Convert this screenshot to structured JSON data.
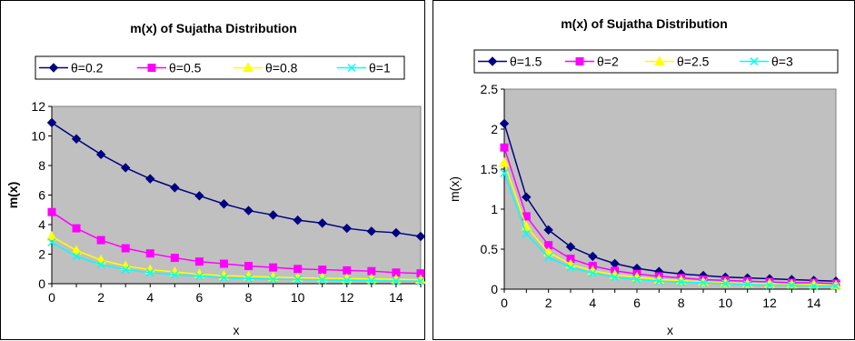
{
  "chart_data": [
    {
      "type": "line",
      "title": "m(x) of Sujatha Distribution",
      "xlabel": "x",
      "ylabel": "m(x)",
      "ylabel_bold": true,
      "xlim": [
        0,
        15
      ],
      "ylim": [
        0,
        12
      ],
      "xticks": [
        0,
        2,
        4,
        6,
        8,
        10,
        12,
        14
      ],
      "yticks": [
        0,
        2,
        4,
        6,
        8,
        10,
        12
      ],
      "ytick_labels": [
        "0",
        "2",
        "4",
        "6",
        "8",
        "10",
        "12"
      ],
      "grid": false,
      "legend_position": "top",
      "plot_background": "#c0c0c0",
      "x": [
        0,
        1,
        2,
        3,
        4,
        5,
        6,
        7,
        8,
        9,
        10,
        11,
        12,
        13,
        14,
        15
      ],
      "series": [
        {
          "name": "θ=0.2",
          "color": "#000080",
          "marker": "diamond",
          "values": [
            10.9,
            9.8,
            8.75,
            7.85,
            7.1,
            6.5,
            5.95,
            5.4,
            4.95,
            4.65,
            4.3,
            4.1,
            3.75,
            3.55,
            3.45,
            3.2
          ]
        },
        {
          "name": "θ=0.5",
          "color": "#ff00ff",
          "marker": "square",
          "values": [
            4.85,
            3.75,
            2.95,
            2.4,
            2.05,
            1.75,
            1.5,
            1.35,
            1.2,
            1.1,
            1.0,
            0.95,
            0.9,
            0.85,
            0.75,
            0.7
          ]
        },
        {
          "name": "θ=0.8",
          "color": "#ffff00",
          "marker": "triangle",
          "values": [
            3.2,
            2.25,
            1.6,
            1.2,
            0.95,
            0.8,
            0.65,
            0.55,
            0.5,
            0.45,
            0.4,
            0.38,
            0.35,
            0.33,
            0.3,
            0.28
          ]
        },
        {
          "name": "θ=1",
          "color": "#00ffff",
          "marker": "x",
          "values": [
            2.8,
            1.85,
            1.3,
            0.95,
            0.75,
            0.6,
            0.5,
            0.4,
            0.35,
            0.3,
            0.28,
            0.25,
            0.22,
            0.2,
            0.18,
            0.17
          ]
        }
      ]
    },
    {
      "type": "line",
      "title": "m(x) of Sujatha Distribution",
      "xlabel": "x",
      "ylabel": "m(x)",
      "ylabel_bold": false,
      "xlim": [
        0,
        15
      ],
      "ylim": [
        0,
        2.5
      ],
      "xticks": [
        0,
        2,
        4,
        6,
        8,
        10,
        12,
        14
      ],
      "yticks": [
        0,
        0.5,
        1,
        1.5,
        2,
        2.5
      ],
      "ytick_labels": [
        "0",
        "0.5",
        "1",
        "1.5",
        "2",
        "2.5"
      ],
      "grid": false,
      "legend_position": "top",
      "plot_background": "#c0c0c0",
      "x": [
        0,
        1,
        2,
        3,
        4,
        5,
        6,
        7,
        8,
        9,
        10,
        11,
        12,
        13,
        14,
        15
      ],
      "series": [
        {
          "name": "θ=1.5",
          "color": "#000080",
          "marker": "diamond",
          "values": [
            2.07,
            1.15,
            0.74,
            0.53,
            0.41,
            0.32,
            0.26,
            0.22,
            0.19,
            0.17,
            0.15,
            0.14,
            0.13,
            0.12,
            0.11,
            0.1
          ]
        },
        {
          "name": "θ=2",
          "color": "#ff00ff",
          "marker": "square",
          "values": [
            1.77,
            0.91,
            0.55,
            0.38,
            0.29,
            0.23,
            0.19,
            0.16,
            0.14,
            0.12,
            0.11,
            0.1,
            0.09,
            0.08,
            0.08,
            0.07
          ]
        },
        {
          "name": "θ=2.5",
          "color": "#ffff00",
          "marker": "triangle",
          "values": [
            1.58,
            0.78,
            0.46,
            0.31,
            0.23,
            0.18,
            0.15,
            0.12,
            0.11,
            0.09,
            0.08,
            0.07,
            0.07,
            0.06,
            0.06,
            0.05
          ]
        },
        {
          "name": "θ=3",
          "color": "#00ffff",
          "marker": "x",
          "values": [
            1.45,
            0.69,
            0.4,
            0.27,
            0.2,
            0.15,
            0.12,
            0.1,
            0.09,
            0.08,
            0.07,
            0.06,
            0.05,
            0.05,
            0.04,
            0.04
          ]
        }
      ]
    }
  ]
}
